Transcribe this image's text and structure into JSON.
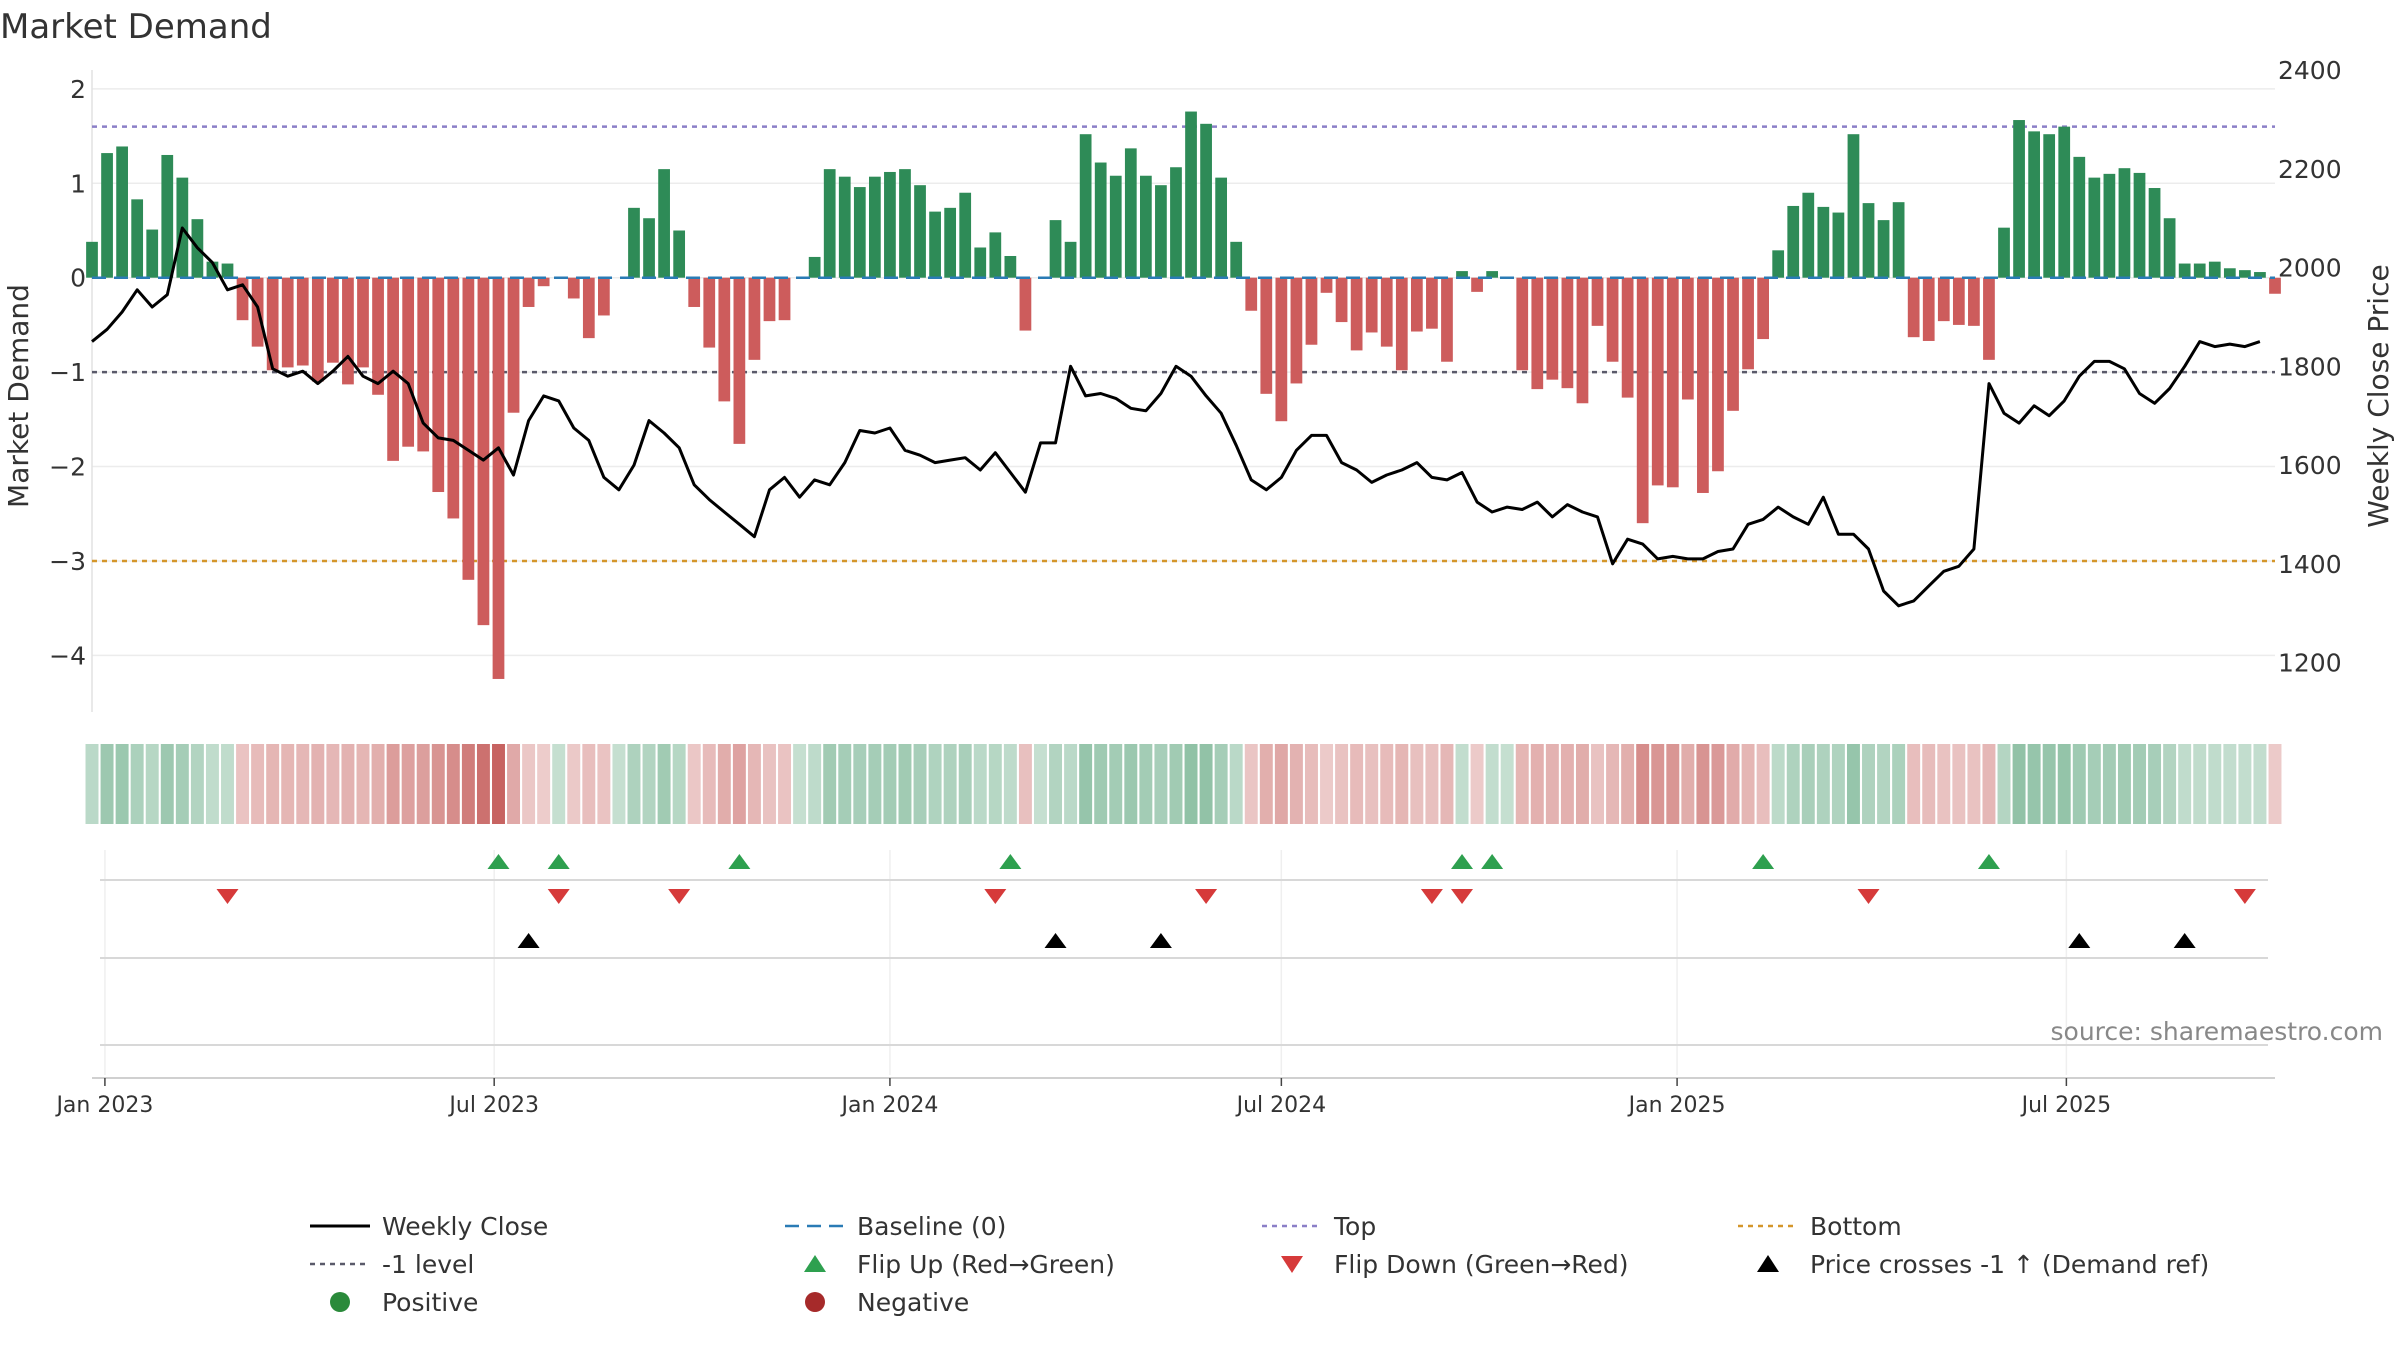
{
  "chart_data": {
    "type": "bar",
    "title": "Market Demand",
    "ylabel": "Market Demand",
    "ylabel_right": "Weekly Close Price",
    "ylim": [
      -4.6,
      2.2
    ],
    "ylim_right": [
      1100,
      2400
    ],
    "yticks": [
      2,
      1,
      0,
      -1,
      -2,
      -3,
      -4
    ],
    "yticks_labels": [
      "2",
      "1",
      "0",
      "−1",
      "−2",
      "−3",
      "−4"
    ],
    "yticks_right": [
      2400,
      2200,
      2000,
      1800,
      1600,
      1400,
      1200
    ],
    "x_start": "2022-12-26",
    "x_end": "2025-10-06",
    "xticks": [
      {
        "date": "2023-01-01",
        "label": "Jan 2023"
      },
      {
        "date": "2023-07-01",
        "label": "Jul 2023"
      },
      {
        "date": "2024-01-01",
        "label": "Jan 2024"
      },
      {
        "date": "2024-07-01",
        "label": "Jul 2024"
      },
      {
        "date": "2025-01-01",
        "label": "Jan 2025"
      },
      {
        "date": "2025-07-01",
        "label": "Jul 2025"
      }
    ],
    "weeks_start": "2022-12-26",
    "demand": [
      0.38,
      1.32,
      1.39,
      0.83,
      0.51,
      1.3,
      1.06,
      0.62,
      0.17,
      0.15,
      -0.45,
      -0.73,
      -0.98,
      -0.95,
      -0.93,
      -1.1,
      -0.9,
      -1.13,
      -0.95,
      -1.24,
      -1.94,
      -1.79,
      -1.84,
      -2.27,
      -2.55,
      -3.2,
      -3.68,
      -4.25,
      -1.43,
      -0.31,
      -0.09,
      0,
      -0.22,
      -0.64,
      -0.4,
      0,
      0.74,
      0.63,
      1.15,
      0.5,
      -0.31,
      -0.74,
      -1.31,
      -1.76,
      -0.87,
      -0.46,
      -0.45,
      0,
      0.22,
      1.15,
      1.07,
      0.96,
      1.07,
      1.12,
      1.15,
      0.98,
      0.7,
      0.74,
      0.9,
      0.32,
      0.48,
      0.23,
      -0.56,
      0,
      0.61,
      0.38,
      1.52,
      1.22,
      1.08,
      1.37,
      1.08,
      0.98,
      1.17,
      1.76,
      1.63,
      1.06,
      0.38,
      -0.35,
      -1.23,
      -1.52,
      -1.12,
      -0.71,
      -0.16,
      -0.47,
      -0.77,
      -0.58,
      -0.73,
      -0.98,
      -0.57,
      -0.54,
      -0.89,
      0.07,
      -0.15,
      0.07,
      0,
      -0.98,
      -1.18,
      -1.08,
      -1.17,
      -1.33,
      -0.51,
      -0.89,
      -1.27,
      -2.6,
      -2.2,
      -2.22,
      -1.29,
      -2.28,
      -2.05,
      -1.41,
      -0.97,
      -0.65,
      0.29,
      0.76,
      0.9,
      0.75,
      0.69,
      1.52,
      0.79,
      0.61,
      0.8,
      -0.63,
      -0.67,
      -0.46,
      -0.5,
      -0.51,
      -0.87,
      0.53,
      1.67,
      1.55,
      1.52,
      1.6,
      1.28,
      1.06,
      1.1,
      1.16,
      1.11,
      0.95,
      0.63,
      0.15,
      0.15,
      0.17,
      0.1,
      0.08,
      0.06,
      -0.17
    ],
    "price": [
      1850,
      1875,
      1910,
      1955,
      1920,
      1945,
      2080,
      2040,
      2010,
      1955,
      1965,
      1920,
      1795,
      1780,
      1790,
      1765,
      1790,
      1820,
      1780,
      1765,
      1790,
      1765,
      1685,
      1655,
      1650,
      1630,
      1610,
      1635,
      1580,
      1690,
      1740,
      1730,
      1675,
      1650,
      1575,
      1550,
      1600,
      1690,
      1665,
      1635,
      1560,
      1530,
      1505,
      1480,
      1455,
      1550,
      1575,
      1535,
      1570,
      1560,
      1605,
      1670,
      1665,
      1675,
      1630,
      1620,
      1605,
      1610,
      1615,
      1590,
      1625,
      1585,
      1545,
      1645,
      1645,
      1800,
      1740,
      1745,
      1735,
      1715,
      1710,
      1745,
      1800,
      1780,
      1740,
      1705,
      1640,
      1570,
      1550,
      1575,
      1630,
      1660,
      1660,
      1605,
      1590,
      1565,
      1580,
      1590,
      1605,
      1575,
      1570,
      1585,
      1525,
      1505,
      1515,
      1510,
      1525,
      1495,
      1520,
      1505,
      1495,
      1400,
      1450,
      1440,
      1410,
      1415,
      1410,
      1410,
      1425,
      1430,
      1480,
      1490,
      1515,
      1495,
      1480,
      1535,
      1460,
      1460,
      1430,
      1345,
      1315,
      1325,
      1355,
      1385,
      1395,
      1430,
      1765,
      1705,
      1685,
      1720,
      1700,
      1730,
      1780,
      1810,
      1810,
      1795,
      1745,
      1725,
      1755,
      1800,
      1850,
      1840,
      1845,
      1840,
      1850
    ],
    "reference_lines": [
      {
        "name": "Top",
        "value": 1.6,
        "color": "#8b7fc7"
      },
      {
        "name": "-1 level",
        "value": -1,
        "color": "#5a5a6a"
      },
      {
        "name": "Bottom",
        "value": -3,
        "color": "#d4962a"
      },
      {
        "name": "Baseline (0)",
        "value": 0,
        "color": "#2a7bb5"
      }
    ],
    "flip_up_weeks": [
      27,
      31,
      43,
      61,
      91,
      93,
      111,
      126
    ],
    "flip_down_weeks": [
      9,
      31,
      39,
      60,
      74,
      89,
      91,
      118,
      143
    ],
    "price_cross_weeks": [
      29,
      64,
      71,
      132,
      139
    ],
    "legend": [
      {
        "label": "Weekly Close",
        "symbol": "solid-line",
        "color": "#000000"
      },
      {
        "label": "Baseline (0)",
        "symbol": "dashed-line",
        "color": "#2a7bb5"
      },
      {
        "label": "Top",
        "symbol": "dotted-line",
        "color": "#8b7fc7"
      },
      {
        "label": "Bottom",
        "symbol": "dotted-line",
        "color": "#d4962a"
      },
      {
        "label": "-1 level",
        "symbol": "dotted-line",
        "color": "#5a5a6a"
      },
      {
        "label": "Flip Up (Red→Green)",
        "symbol": "triangle-up",
        "color": "#2ea04f"
      },
      {
        "label": "Flip Down (Green→Red)",
        "symbol": "triangle-down",
        "color": "#d63a3a"
      },
      {
        "label": "Price crosses -1 ↑ (Demand ref)",
        "symbol": "triangle-up",
        "color": "#000000"
      },
      {
        "label": "Positive",
        "symbol": "circle",
        "color": "#2a8a3a"
      },
      {
        "label": "Negative",
        "symbol": "circle",
        "color": "#a62a2a"
      }
    ],
    "legend_placement": "bottom",
    "annotation": "source: sharemaestro.com",
    "colors": {
      "positive_bar": "#2e8b57",
      "negative_bar": "#cd5c5c",
      "price_line": "#000000",
      "heat_positive": "#2e8b57",
      "heat_negative": "#c0504d"
    }
  }
}
